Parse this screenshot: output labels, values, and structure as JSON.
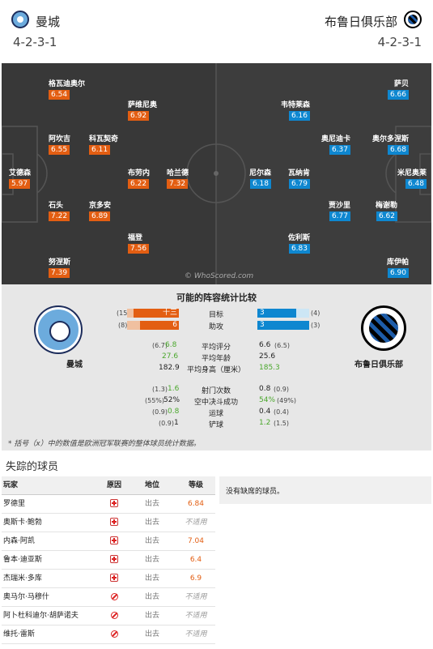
{
  "header": {
    "home_team": "曼城",
    "away_team": "布鲁日俱乐部",
    "home_formation": "4-2-3-1",
    "away_formation": "4-2-3-1"
  },
  "pitch": {
    "watermark": "© WhoScored.com",
    "home_players": [
      {
        "name": "格瓦迪奥尔",
        "rating": "6.54"
      },
      {
        "name": "萨维尼奥",
        "rating": "6.92"
      },
      {
        "name": "阿坎吉",
        "rating": "6.55"
      },
      {
        "name": "科瓦契奇",
        "rating": "6.11"
      },
      {
        "name": "艾德森",
        "rating": "5.97"
      },
      {
        "name": "布劳内",
        "rating": "6.22"
      },
      {
        "name": "哈兰德",
        "rating": "7.32"
      },
      {
        "name": "石头",
        "rating": "7.22"
      },
      {
        "name": "京多安",
        "rating": "6.89"
      },
      {
        "name": "福登",
        "rating": "7.56"
      },
      {
        "name": "努涅斯",
        "rating": "7.39"
      }
    ],
    "away_players": [
      {
        "name": "萨贝",
        "rating": "6.66"
      },
      {
        "name": "韦特莱森",
        "rating": "6.16"
      },
      {
        "name": "奥尼迪卡",
        "rating": "6.37"
      },
      {
        "name": "奥尔多涅斯",
        "rating": "6.68"
      },
      {
        "name": "米尼奥莱",
        "rating": "6.48"
      },
      {
        "name": "尼尔森",
        "rating": "6.18"
      },
      {
        "name": "瓦纳肯",
        "rating": "6.79"
      },
      {
        "name": "贾沙里",
        "rating": "6.77"
      },
      {
        "name": "梅谢勒",
        "rating": "6.62"
      },
      {
        "name": "佐利斯",
        "rating": "6.83"
      },
      {
        "name": "库伊帕",
        "rating": "6.90"
      }
    ]
  },
  "stats": {
    "title": "可能的阵容统计比较",
    "home_name": "曼城",
    "away_name": "布鲁日俱乐部",
    "goals": {
      "label": "目标",
      "home": "十三",
      "home_total": "(15)",
      "away": "3",
      "away_total": "(4)",
      "home_fraction": 0.87,
      "away_fraction": 0.75
    },
    "assists": {
      "label": "助攻",
      "home": "6",
      "home_total": "(8)",
      "away": "3",
      "away_total": "(3)",
      "home_fraction": 0.75,
      "away_fraction": 1.0
    },
    "rows1": [
      {
        "label": "平均评分",
        "home_paren": "(6.7)",
        "home": "6.8",
        "away": "6.6",
        "away_paren": "(6.5)",
        "home_green": true,
        "away_green": false
      },
      {
        "label": "平均年龄",
        "home_paren": "",
        "home": "27.6",
        "away": "25.6",
        "away_paren": "",
        "home_green": true,
        "away_green": false
      },
      {
        "label": "平均身高（厘米）",
        "home_paren": "",
        "home": "182.9",
        "away": "185.3",
        "away_paren": "",
        "home_green": false,
        "away_green": true
      }
    ],
    "rows2": [
      {
        "label": "射门次数",
        "home_paren": "(1.3)",
        "home": "1.6",
        "away": "0.8",
        "away_paren": "(0.9)",
        "home_green": true,
        "away_green": false
      },
      {
        "label": "空中决斗成功",
        "home_paren": "(55%)",
        "home": "52%",
        "away": "54%",
        "away_paren": "(49%)",
        "home_green": false,
        "away_green": true
      },
      {
        "label": "运球",
        "home_paren": "(0.9)",
        "home": "0.8",
        "away": "0.4",
        "away_paren": "(0.4)",
        "home_green": true,
        "away_green": false
      },
      {
        "label": "铲球",
        "home_paren": "(0.9)",
        "home": "1",
        "away": "1.2",
        "away_paren": "(1.5)",
        "home_green": false,
        "away_green": true
      }
    ],
    "footnote": "* 括号（x）中的数值是欧洲冠军联赛的整体球员统计数据。"
  },
  "missing": {
    "title": "失踪的球员",
    "headers": {
      "name": "玩家",
      "reason": "原因",
      "position": "地位",
      "rating": "等级"
    },
    "rows": [
      {
        "name": "罗德里",
        "reason": "injury-icon",
        "position": "出去",
        "rating": "6.84"
      },
      {
        "name": "奥斯卡·鲍勃",
        "reason": "injury-icon",
        "position": "出去",
        "rating": "不适用"
      },
      {
        "name": "内森·阿凯",
        "reason": "injury-icon",
        "position": "出去",
        "rating": "7.04"
      },
      {
        "name": "鲁本·迪亚斯",
        "reason": "injury-icon",
        "position": "出去",
        "rating": "6.4"
      },
      {
        "name": "杰瑞米·多库",
        "reason": "injury-icon",
        "position": "出去",
        "rating": "6.9"
      },
      {
        "name": "奥马尔·马穆什",
        "reason": "ban-icon",
        "position": "出去",
        "rating": "不适用"
      },
      {
        "name": "阿卜杜科迪尔·胡萨诺夫",
        "reason": "ban-icon",
        "position": "出去",
        "rating": "不适用"
      },
      {
        "name": "维托·雷斯",
        "reason": "ban-icon",
        "position": "出去",
        "rating": "不适用"
      }
    ],
    "away_note": "没有缺席的球员。"
  }
}
